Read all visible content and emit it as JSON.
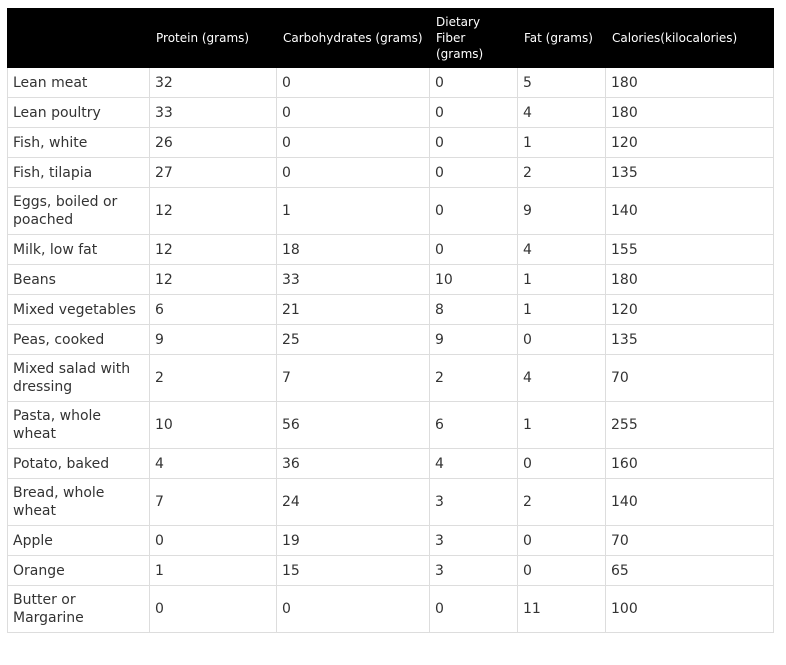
{
  "table": {
    "header": [
      "Protein (grams)",
      "Carbohydrates (grams)",
      "Dietary Fiber (grams)",
      "Fat (grams)",
      "Calories(kilocalories)"
    ],
    "rows": [
      [
        "Lean meat",
        32,
        0,
        0,
        5,
        180
      ],
      [
        "Lean poultry",
        33,
        0,
        0,
        4,
        180
      ],
      [
        "Fish, white",
        26,
        0,
        0,
        1,
        120
      ],
      [
        "Fish, tilapia",
        27,
        0,
        0,
        2,
        135
      ],
      [
        "Eggs, boiled or poached",
        12,
        1,
        0,
        9,
        140
      ],
      [
        "Milk, low fat",
        12,
        18,
        0,
        4,
        155
      ],
      [
        "Beans",
        12,
        33,
        10,
        1,
        180
      ],
      [
        "Mixed vegetables",
        6,
        21,
        8,
        1,
        120
      ],
      [
        "Peas, cooked",
        9,
        25,
        9,
        0,
        135
      ],
      [
        "Mixed salad with dressing",
        2,
        7,
        2,
        4,
        70
      ],
      [
        "Pasta, whole wheat",
        10,
        56,
        6,
        1,
        255
      ],
      [
        "Potato, baked",
        4,
        36,
        4,
        0,
        160
      ],
      [
        "Bread, whole wheat",
        7,
        24,
        3,
        2,
        140
      ],
      [
        "Apple",
        0,
        19,
        3,
        0,
        70
      ],
      [
        "Orange",
        1,
        15,
        3,
        0,
        65
      ],
      [
        "Butter or Margarine",
        0,
        0,
        0,
        11,
        100
      ]
    ]
  }
}
